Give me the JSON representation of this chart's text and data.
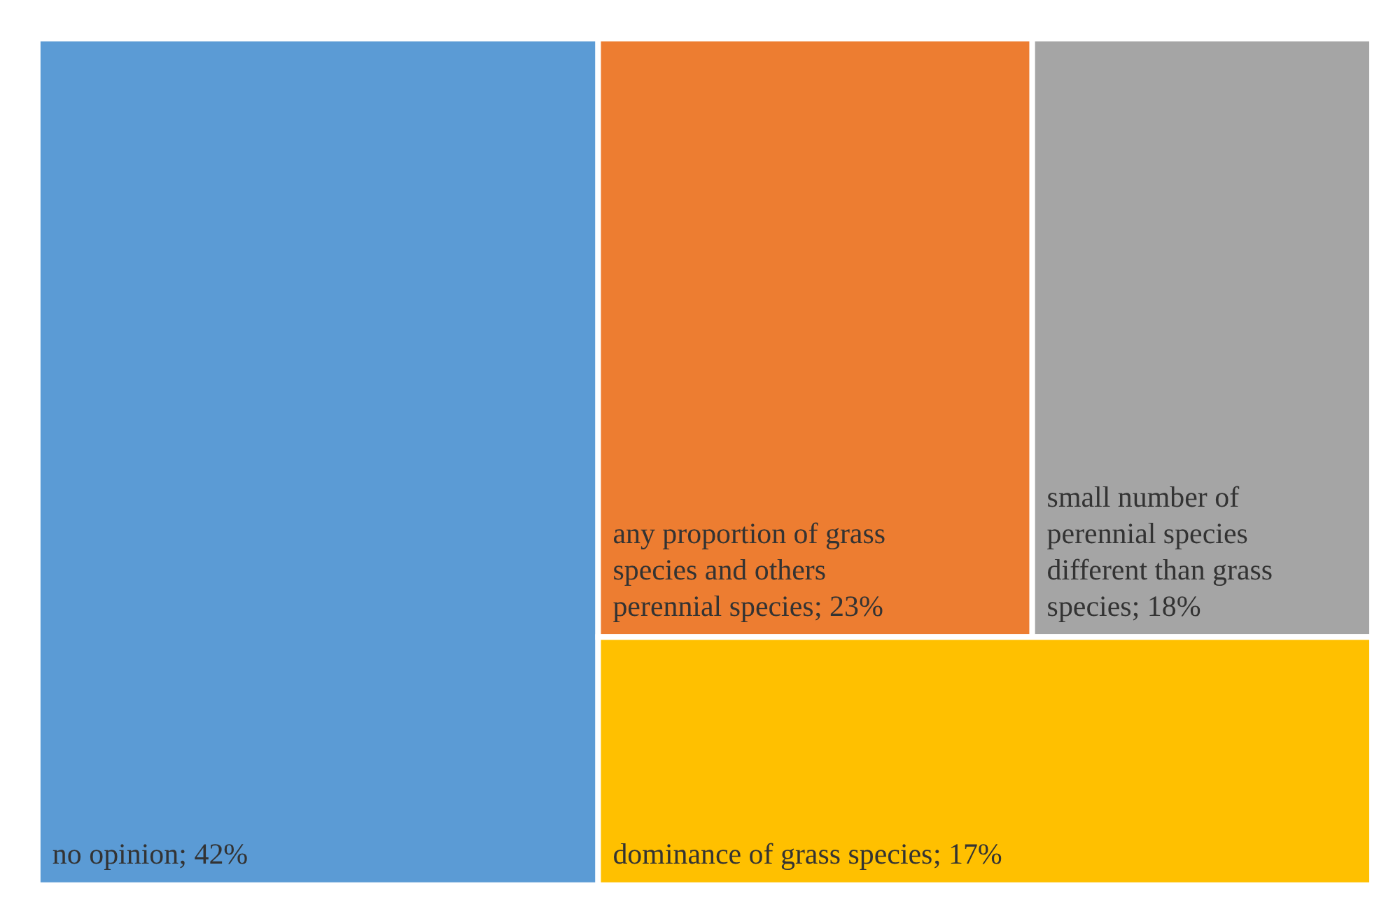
{
  "chart_data": {
    "type": "other",
    "categories": [
      "no opinion",
      "any proportion of grass species and others perennial species",
      "small number of perennial species different than grass species",
      "dominance of grass species"
    ],
    "value_labels": [
      "; 42%",
      "; 23%",
      "; 18%",
      "; 17%"
    ],
    "values": [
      42,
      23,
      18,
      17
    ],
    "colors": [
      "#5b9bd5",
      "#ed7d31",
      "#a5a5a5",
      "#ffc000"
    ]
  }
}
